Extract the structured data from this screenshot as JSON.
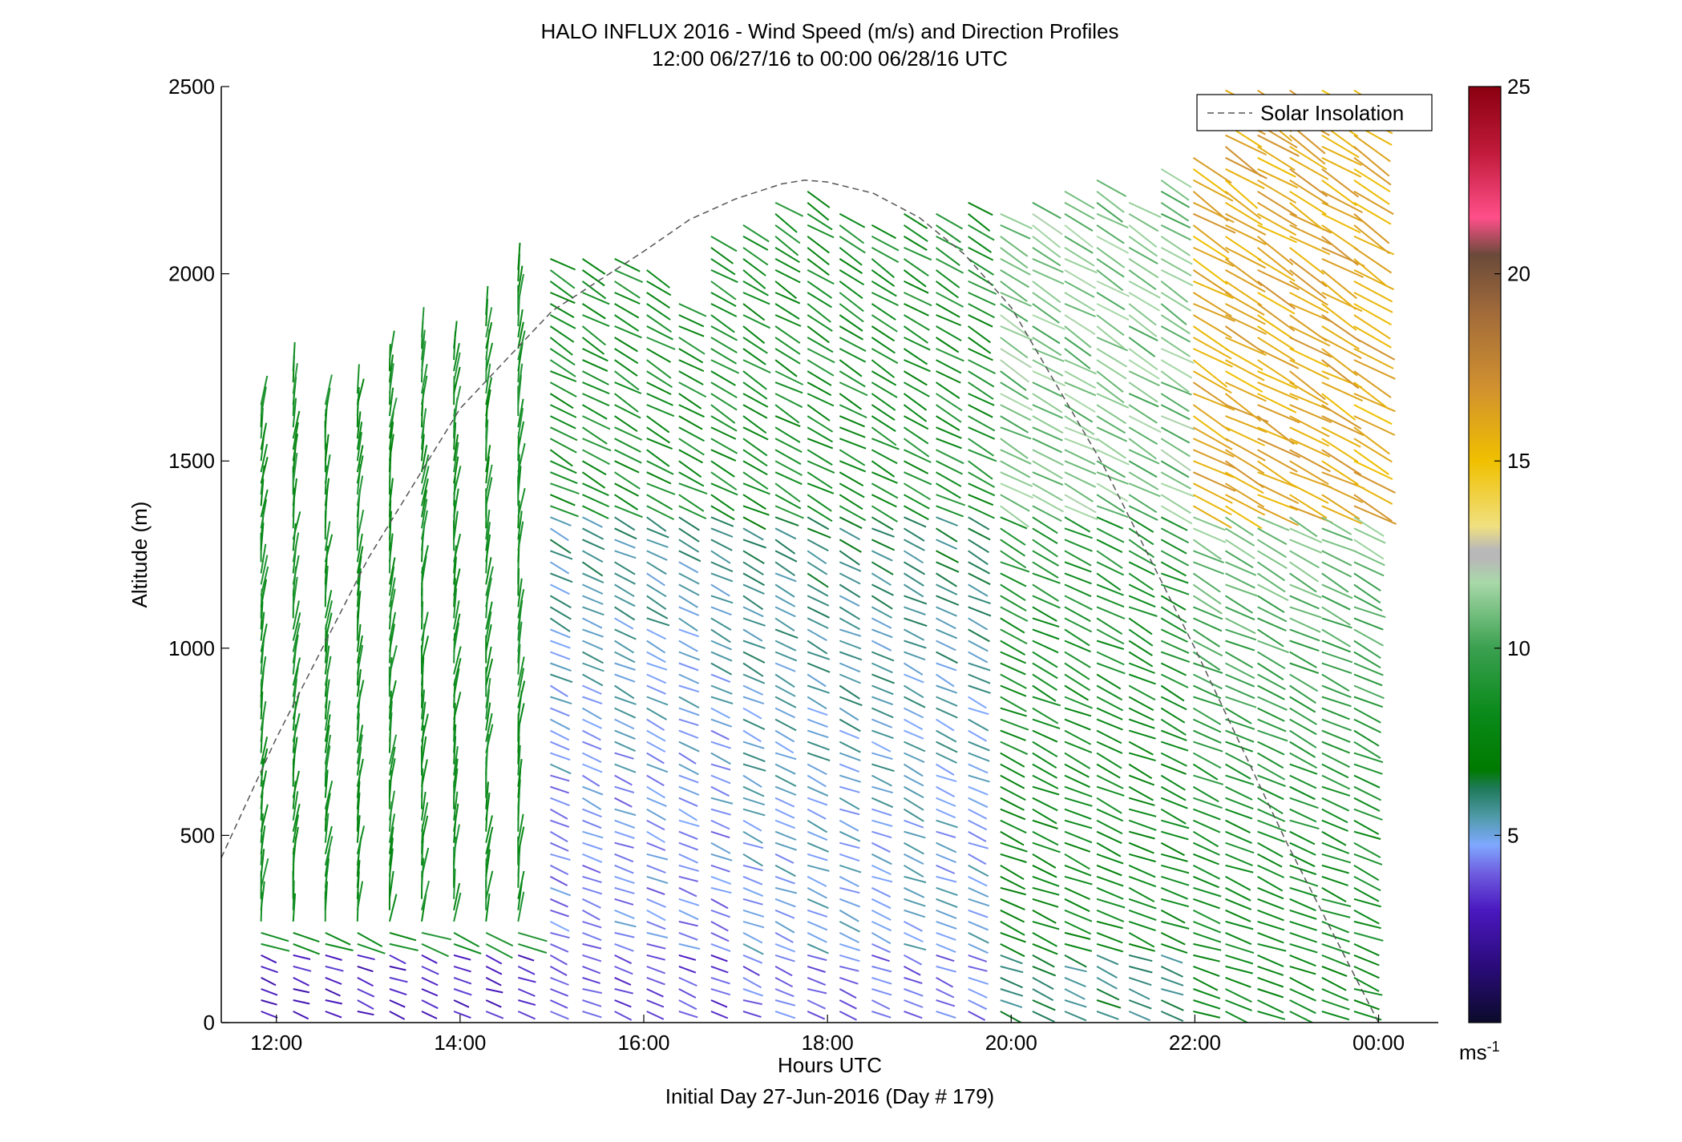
{
  "chart_data": {
    "type": "quiver",
    "title": "HALO INFLUX 2016 - Wind Speed (m/s) and Direction Profiles",
    "subtitle": "12:00 06/27/16 to 00:00 06/28/16  UTC",
    "xlabel": "Hours UTC",
    "xlabel2": "Initial Day 27-Jun-2016 (Day # 179)",
    "ylabel": "Altitude (m)",
    "xlim": [
      11.4,
      24.65
    ],
    "ylim": [
      0,
      2500
    ],
    "x_ticks": [
      {
        "value": 12,
        "label": "12:00"
      },
      {
        "value": 14,
        "label": "14:00"
      },
      {
        "value": 16,
        "label": "16:00"
      },
      {
        "value": 18,
        "label": "18:00"
      },
      {
        "value": 20,
        "label": "20:00"
      },
      {
        "value": 22,
        "label": "22:00"
      },
      {
        "value": 24,
        "label": "00:00"
      }
    ],
    "y_ticks": [
      0,
      500,
      1000,
      1500,
      2000,
      2500
    ],
    "legend": {
      "entries": [
        "Solar Insolation"
      ],
      "position": "top-right"
    },
    "colorbar": {
      "min": 0,
      "max": 25,
      "ticks": [
        5,
        10,
        15,
        20,
        25
      ],
      "unit_label": "ms",
      "unit_exponent": "-1"
    },
    "solar_insolation": {
      "x": [
        11.4,
        12.0,
        13.0,
        14.0,
        15.0,
        16.0,
        16.5,
        17.0,
        17.5,
        17.75,
        18.0,
        18.5,
        19.0,
        19.5,
        20.0,
        21.0,
        22.0,
        23.0,
        24.0,
        24.65
      ],
      "y": [
        440,
        760,
        1240,
        1640,
        1900,
        2060,
        2145,
        2200,
        2240,
        2250,
        2245,
        2215,
        2150,
        2050,
        1910,
        1490,
        1000,
        480,
        0,
        -200
      ]
    },
    "wind_profiles": {
      "profile_times": [
        11.85,
        12.2,
        12.55,
        12.9,
        13.25,
        13.6,
        13.95,
        14.3,
        14.65,
        15.0,
        15.35,
        15.7,
        16.05,
        16.4,
        16.75,
        17.1,
        17.45,
        17.8,
        18.15,
        18.5,
        18.85,
        19.2,
        19.55,
        19.9,
        20.25,
        20.6,
        20.95,
        21.3,
        21.65,
        22.0,
        22.35,
        22.7,
        23.05,
        23.4,
        23.75
      ],
      "top_altitudes": [
        1650,
        1740,
        1660,
        1680,
        1790,
        1840,
        1810,
        1890,
        2020,
        2050,
        2040,
        2060,
        2030,
        1920,
        2100,
        2140,
        2200,
        2230,
        2160,
        2150,
        2180,
        2170,
        2200,
        2180,
        2190,
        2220,
        2250,
        2200,
        2280,
        2320,
        2500,
        2500,
        2500,
        2500,
        2500
      ],
      "altitude_step_m": 30,
      "arrow_scale_note": "speed_ms",
      "speed_regimes": [
        {
          "t_min": 11.4,
          "t_max": 14.7,
          "low": 2.5,
          "mid": 8.5,
          "high": 8.5
        },
        {
          "t_min": 14.7,
          "t_max": 16.8,
          "low": 3.0,
          "mid": 4.5,
          "high": 8.5
        },
        {
          "t_min": 16.8,
          "t_max": 19.6,
          "low": 3.5,
          "mid": 5.0,
          "high": 8.5
        },
        {
          "t_min": 19.6,
          "t_max": 21.9,
          "low": 5.5,
          "mid": 8.0,
          "high": 11.0
        },
        {
          "t_min": 21.9,
          "t_max": 24.0,
          "low": 7.5,
          "mid": 8.5,
          "high": 16.0
        }
      ]
    }
  }
}
